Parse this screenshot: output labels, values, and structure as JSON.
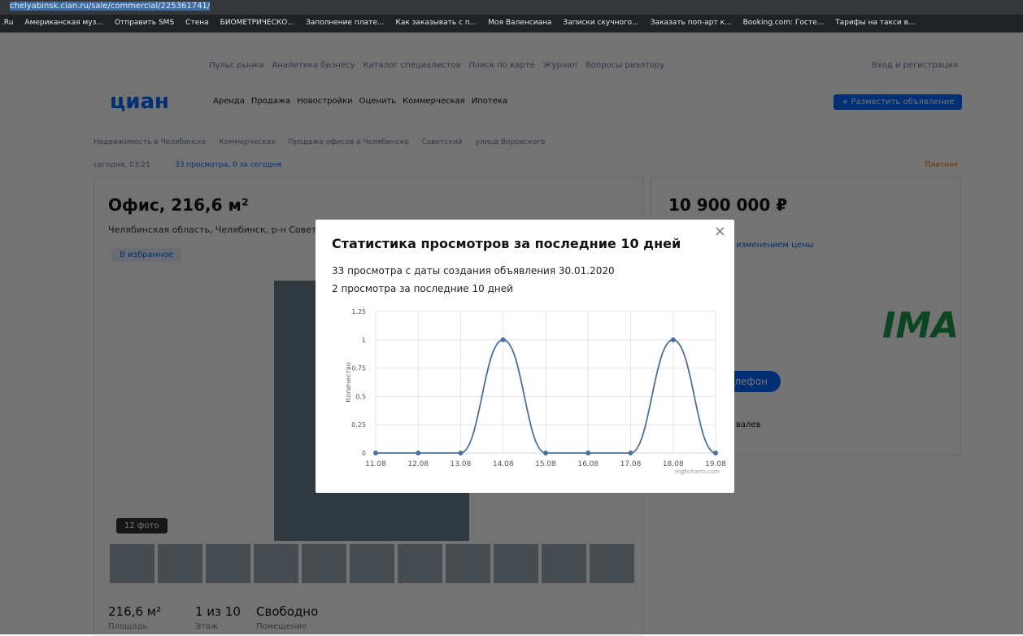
{
  "browser": {
    "url": "chelyabinsk.cian.ru/sale/commercial/225361741/",
    "bookmarks": [
      ".Ru",
      "Американская муз...",
      "Отправить SMS",
      "Стена",
      "БИОМЕТРИЧЕСКО...",
      "Заполнение плате...",
      "Как заказывать с п...",
      "Моя Валенсиана",
      "Записки скучного...",
      "Заказать поп-арт к...",
      "Booking.com: Госте...",
      "Тарифы на такси в..."
    ]
  },
  "site": {
    "top_links": [
      "Пульс рынка",
      "Аналитика бизнесу",
      "Каталог специалистов",
      "Поиск по карте",
      "Журнал",
      "Вопросы риэлтору"
    ],
    "login": "Вход и регистрация",
    "logo": "циан",
    "nav": [
      "Аренда",
      "Продажа",
      "Новостройки",
      "Оценить",
      "Коммерческая",
      "Ипотека"
    ],
    "post_button": "+ Разместить объявление"
  },
  "breadcrumbs": [
    "Недвижимость в Челябинске",
    "Коммерческая",
    "Продажа офисов в Челябинске",
    "Советский",
    "улица Воровского"
  ],
  "meta": {
    "date": "сегодня, 03:21",
    "views": "33 просмотра, 0 за сегодня",
    "paid": "Платное"
  },
  "listing": {
    "title": "Офис, 216,6 м²",
    "address": "Челябинская область, Челябинск, р-н Совет",
    "favorite": "В избранное",
    "photos": "12 фото",
    "facts": [
      {
        "value": "216,6 м²",
        "label": "Площадь"
      },
      {
        "value": "1 из 10",
        "label": "Этаж"
      },
      {
        "value": "Свободно",
        "label": "Помещение"
      }
    ]
  },
  "price": {
    "amount": "10 900 000 ₽",
    "note": "изменением цены",
    "phone_button": "елефон",
    "agent": "валев",
    "logo": "IMA"
  },
  "modal": {
    "title": "Статистика просмотров за последние 10 дней",
    "line1": "33 просмотра с даты создания объявления 30.01.2020",
    "line2": "2 просмотра за последние 10 дней",
    "chart_data": {
      "type": "line",
      "ylabel": "Количество",
      "credits": "Highcharts.com",
      "categories": [
        "11.08",
        "12.08",
        "13.08",
        "14.08",
        "15.08",
        "16.08",
        "17.08",
        "18.08",
        "19.08"
      ],
      "series": [
        {
          "name": "Количество",
          "color": "#4b7199",
          "values": [
            0,
            0,
            0,
            1,
            0,
            0,
            0,
            1,
            0
          ]
        }
      ],
      "ylim": [
        0,
        1.25
      ],
      "yticks": [
        0,
        0.25,
        0.5,
        0.75,
        1,
        1.25
      ],
      "grid": true
    }
  }
}
